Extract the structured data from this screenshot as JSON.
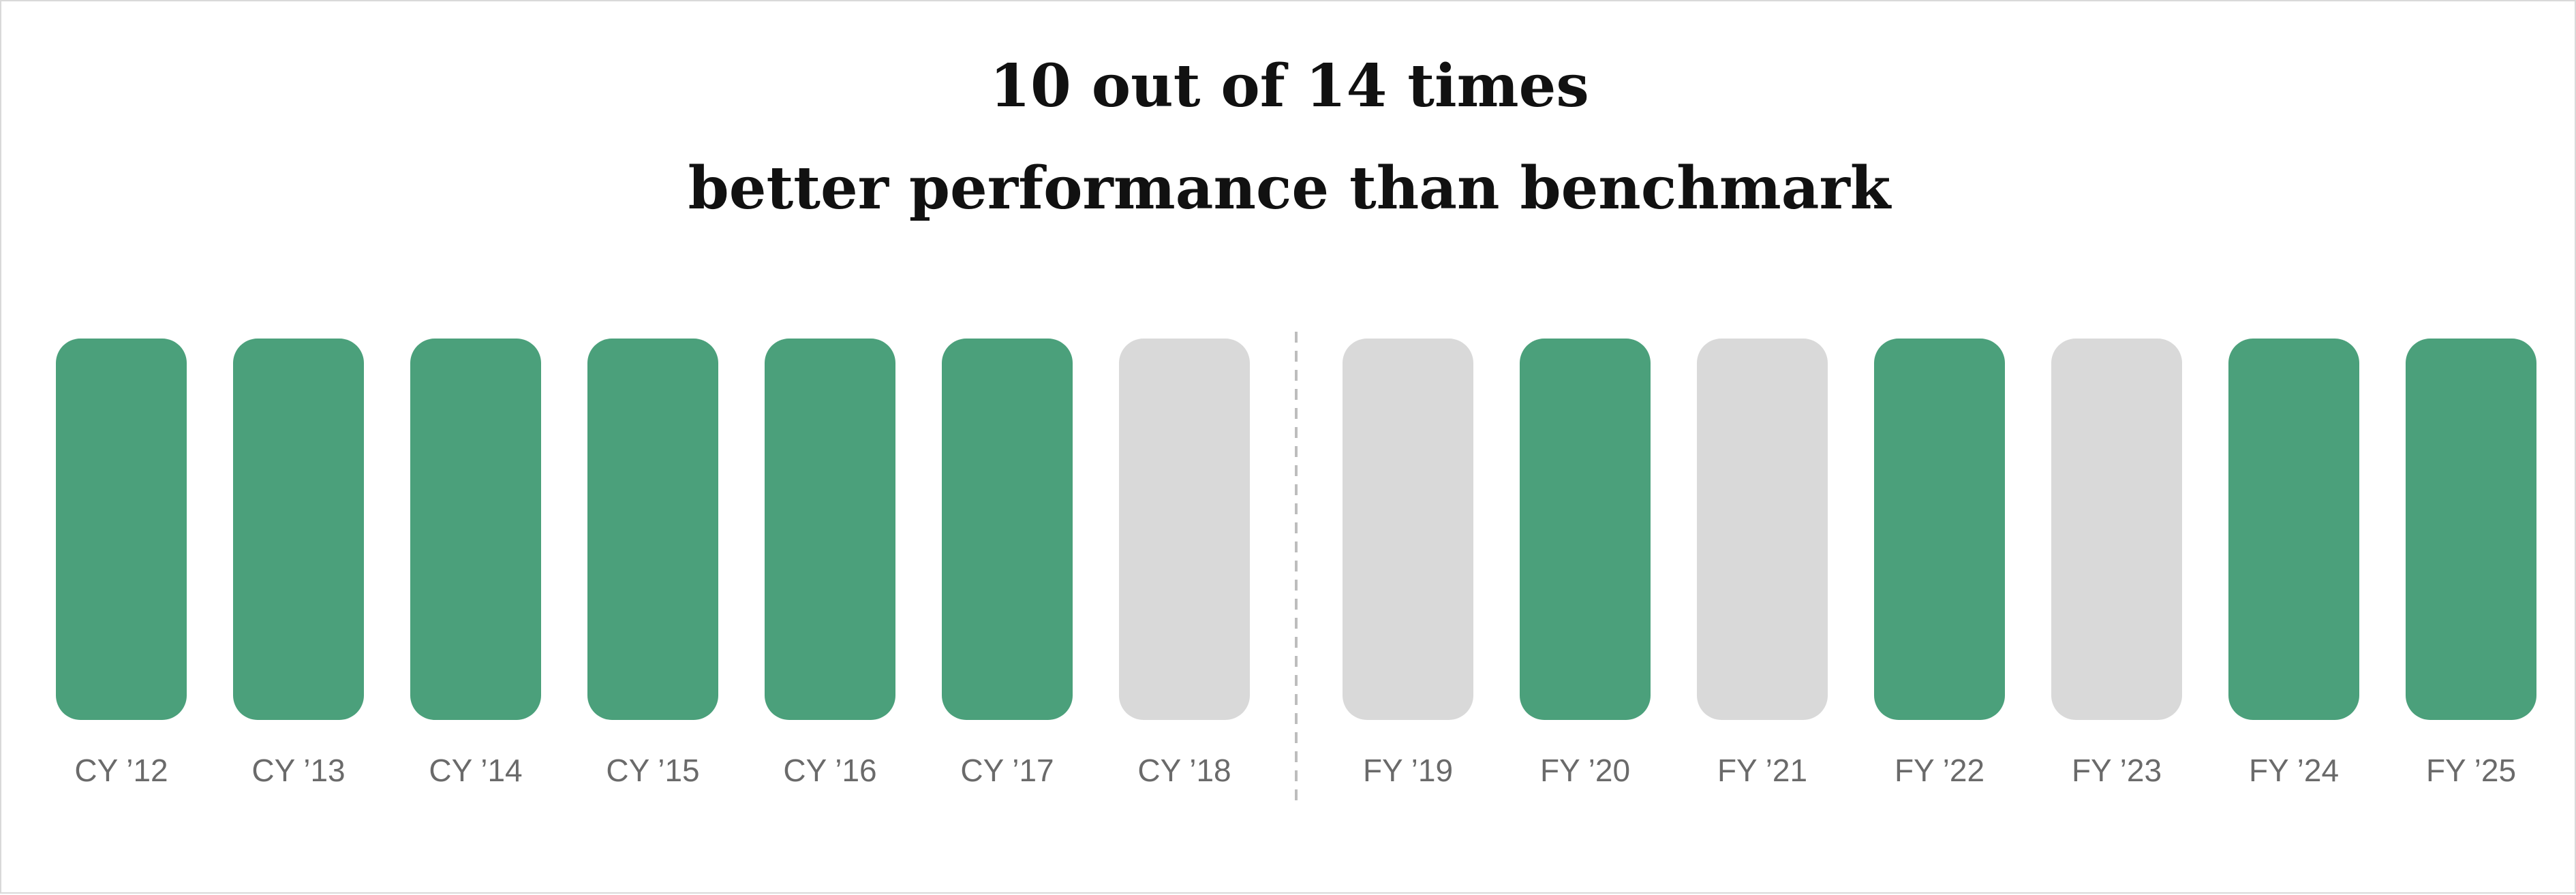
{
  "chart_data": {
    "type": "bar",
    "title_lines": [
      "10 out of 14 times",
      "better performance than benchmark"
    ],
    "categories": [
      "CY ’12",
      "CY ’13",
      "CY ’14",
      "CY ’15",
      "CY ’16",
      "CY ’17",
      "CY ’18",
      "FY ’19",
      "FY ’20",
      "FY ’21",
      "FY ’22",
      "FY ’23",
      "FY ’24",
      "FY ’25"
    ],
    "outperformed": [
      true,
      true,
      true,
      true,
      true,
      true,
      false,
      false,
      true,
      false,
      true,
      false,
      true,
      true
    ],
    "outperformed_count": 10,
    "total_count": 14,
    "divider_after_category": "CY ’18",
    "colors": {
      "outperformed": "#4ba07b",
      "not_outperformed": "#d9d9d9",
      "label": "#6a6a6a",
      "divider": "#bdbdbd"
    },
    "grid": false,
    "legend": "none"
  }
}
